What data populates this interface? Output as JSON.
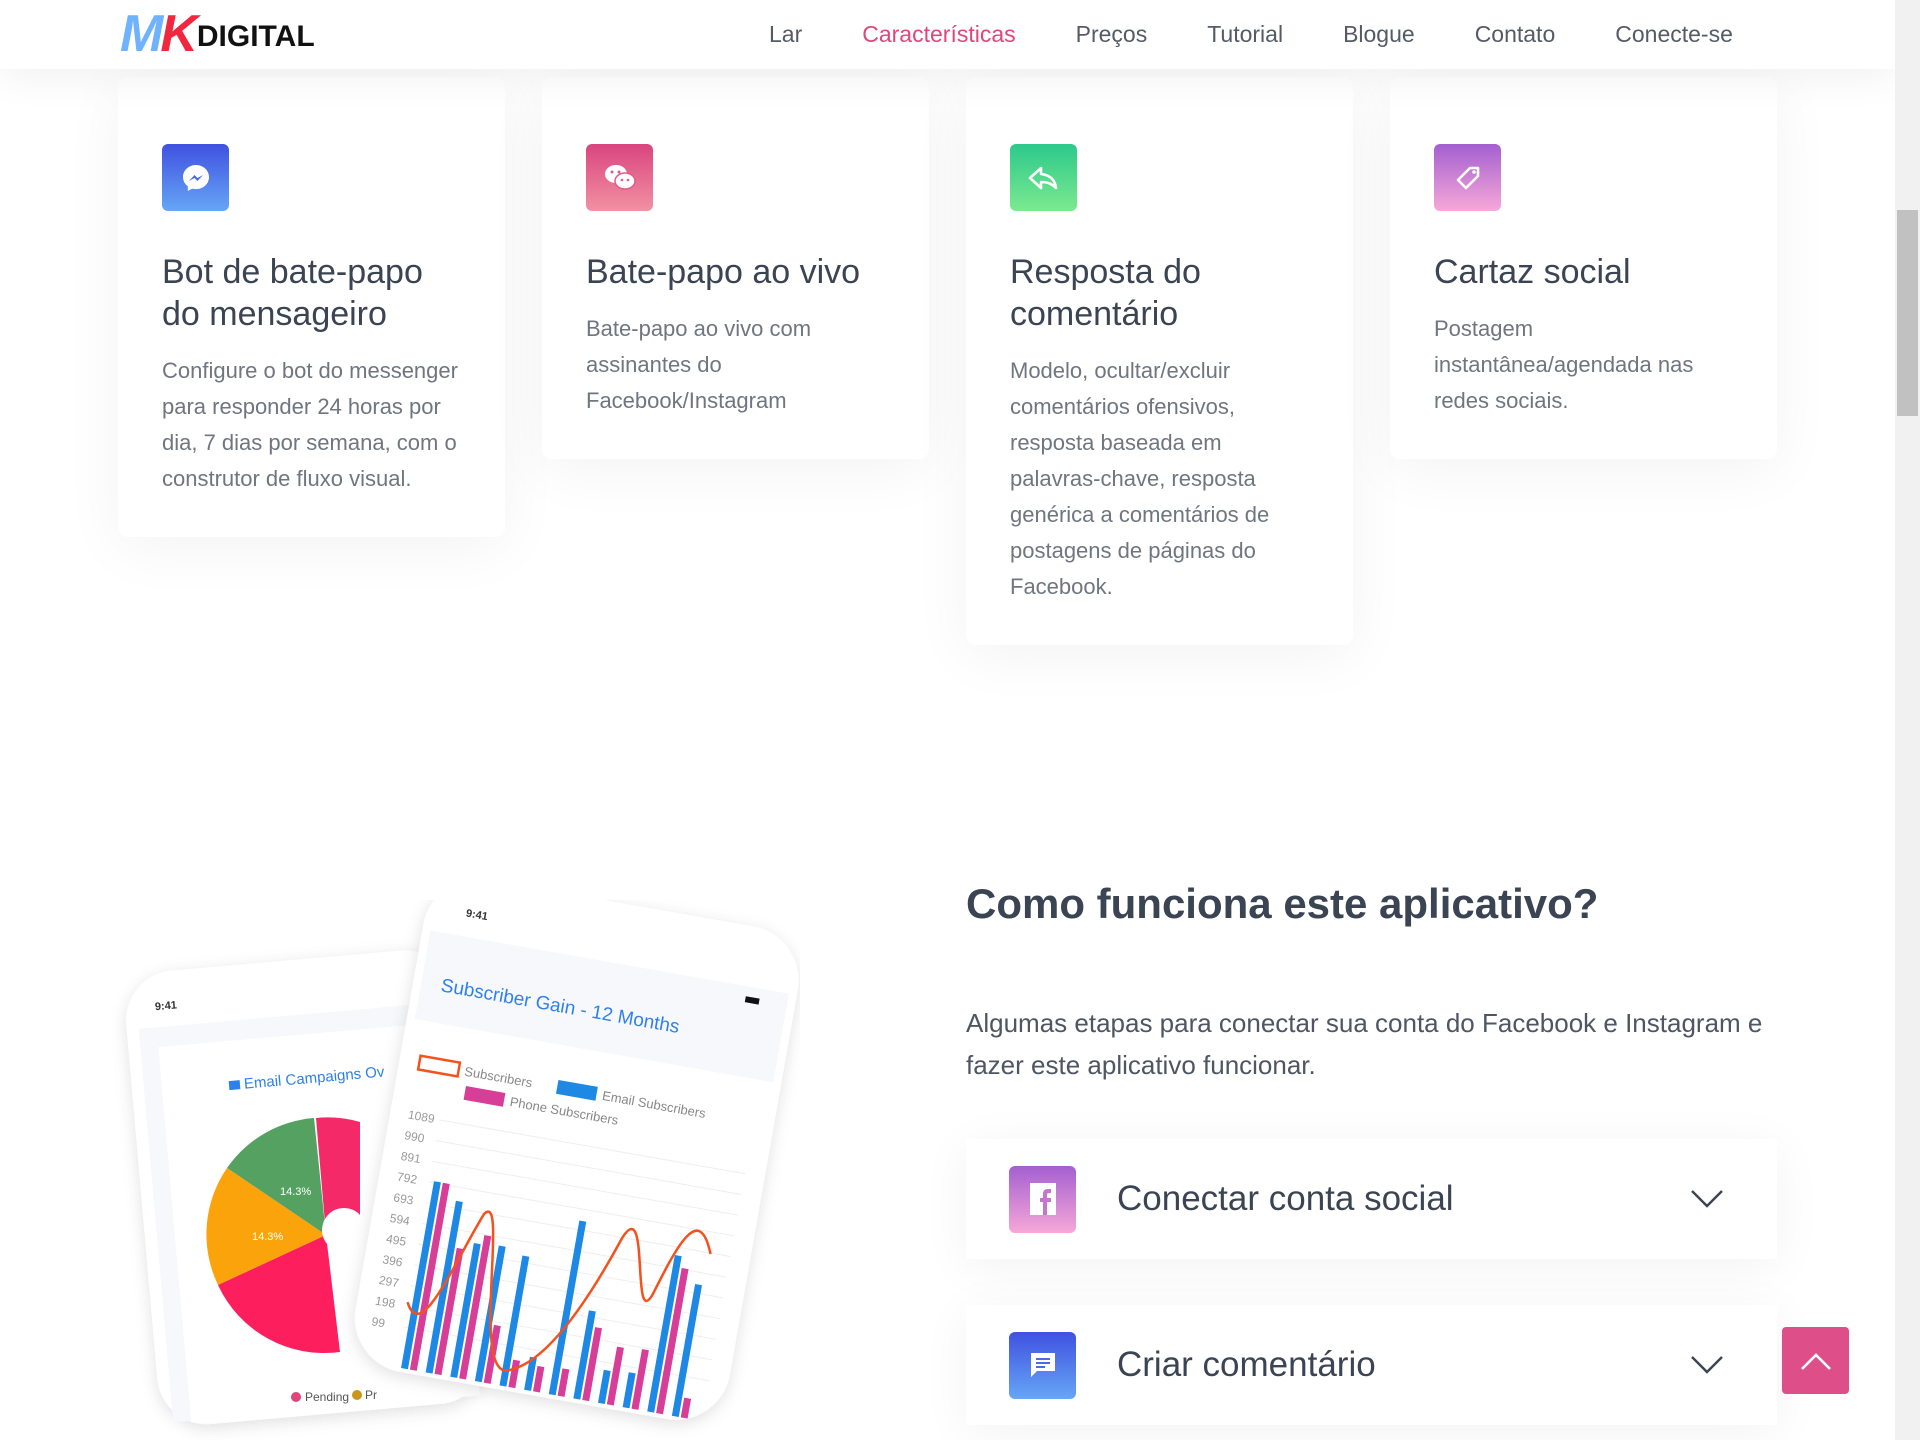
{
  "brand": {
    "logo_mark": "MK",
    "logo_text": "DIGITAL"
  },
  "nav": {
    "items": [
      {
        "label": "Lar",
        "active": false
      },
      {
        "label": "Características",
        "active": true
      },
      {
        "label": "Preços",
        "active": false
      },
      {
        "label": "Tutorial",
        "active": false
      },
      {
        "label": "Blogue",
        "active": false
      },
      {
        "label": "Contato",
        "active": false
      },
      {
        "label": "Conecte-se",
        "active": false
      }
    ],
    "active_color": "#e0457b"
  },
  "features": [
    {
      "icon": "messenger-icon",
      "title": "Bot de bate-papo do mensageiro",
      "description": "Configure o bot do messenger para responder 24 horas por dia, 7 dias por semana, com o construtor de fluxo visual."
    },
    {
      "icon": "wechat-icon",
      "title": "Bate-papo ao vivo",
      "description": "Bate-papo ao vivo com assinantes do Facebook/Instagram"
    },
    {
      "icon": "reply-icon",
      "title": "Resposta do comentário",
      "description": "Modelo, ocultar/excluir comentários ofensivos, resposta baseada em palavras-chave, resposta genérica a comentários de postagens de páginas do Facebook."
    },
    {
      "icon": "tag-icon",
      "title": "Cartaz social",
      "description": "Postagem instantânea/agendada nas redes sociais."
    }
  ],
  "how": {
    "title": "Como funciona este aplicativo?",
    "text": "Algumas etapas para conectar sua conta do Facebook e Instagram e fazer este aplicativo funcionar.",
    "steps": [
      {
        "icon": "facebook-icon",
        "label": "Conectar conta social"
      },
      {
        "icon": "comment-icon",
        "label": "Criar comentário"
      }
    ]
  },
  "mockup": {
    "time": "9:41",
    "back_title": "Email Campaigns Ov",
    "pie_labels": [
      "14.3%",
      "14.3%"
    ],
    "pie_legend": [
      "Pending",
      "Pr"
    ],
    "front_title": "Subscriber Gain - 12 Months",
    "legend": [
      "Subscribers",
      "Email Subscribers",
      "Phone Subscribers"
    ],
    "y_ticks": [
      "1089",
      "990",
      "891",
      "792",
      "693",
      "594",
      "495",
      "396",
      "297",
      "198",
      "99"
    ]
  }
}
